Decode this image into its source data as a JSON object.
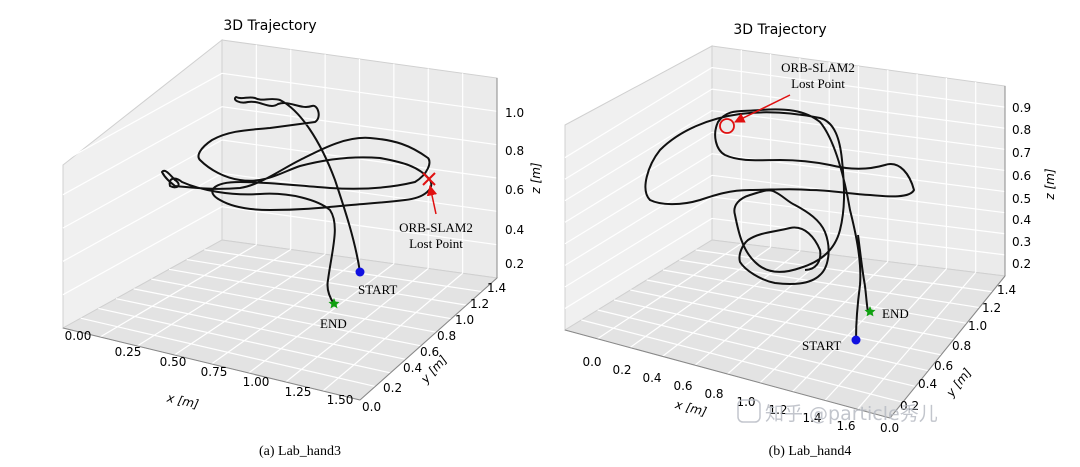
{
  "chart_data": [
    {
      "type": "line3d",
      "title": "3D Trajectory",
      "caption": "(a) Lab_hand3",
      "xlabel": "x [m]",
      "ylabel": "y [m]",
      "zlabel": "z [m]",
      "xlim": [
        -0.1,
        1.7
      ],
      "ylim": [
        -0.1,
        1.5
      ],
      "zlim": [
        0.1,
        1.1
      ],
      "xticks": [
        "0.00",
        "0.25",
        "0.50",
        "0.75",
        "1.00",
        "1.25",
        "1.50"
      ],
      "yticks": [
        "0.0",
        "0.2",
        "0.4",
        "0.6",
        "0.8",
        "1.0",
        "1.2",
        "1.4"
      ],
      "zticks": [
        "0.2",
        "0.4",
        "0.6",
        "0.8",
        "1.0"
      ],
      "grid": true,
      "annotations": [
        {
          "text": "START",
          "marker": "circle",
          "color": "#1010e0"
        },
        {
          "text": "END",
          "marker": "star",
          "color": "#10a010"
        },
        {
          "text": "ORB-SLAM2",
          "text2": "Lost Point",
          "marker": "x",
          "color": "#e01010"
        }
      ]
    },
    {
      "type": "line3d",
      "title": "3D Trajectory",
      "caption": "(b) Lab_hand4",
      "xlabel": "x [m]",
      "ylabel": "y [m]",
      "zlabel": "z [m]",
      "xlim": [
        -0.1,
        1.7
      ],
      "ylim": [
        -0.1,
        1.5
      ],
      "zlim": [
        0.1,
        0.95
      ],
      "xticks": [
        "0.0",
        "0.2",
        "0.4",
        "0.6",
        "0.8",
        "1.0",
        "1.2",
        "1.4",
        "1.6"
      ],
      "yticks": [
        "0.0",
        "0.2",
        "0.4",
        "0.6",
        "0.8",
        "1.0",
        "1.2",
        "1.4"
      ],
      "zticks": [
        "0.2",
        "0.3",
        "0.4",
        "0.5",
        "0.6",
        "0.7",
        "0.8",
        "0.9"
      ],
      "grid": true,
      "annotations": [
        {
          "text": "START",
          "marker": "circle",
          "color": "#1010e0"
        },
        {
          "text": "END",
          "marker": "star",
          "color": "#10a010"
        },
        {
          "text": "ORB-SLAM2",
          "text2": "Lost Point",
          "marker": "circle-open",
          "color": "#e01010"
        }
      ]
    }
  ],
  "watermark": {
    "text": "知乎 @particle秀儿",
    "icon": "zhihu-logo-icon"
  }
}
